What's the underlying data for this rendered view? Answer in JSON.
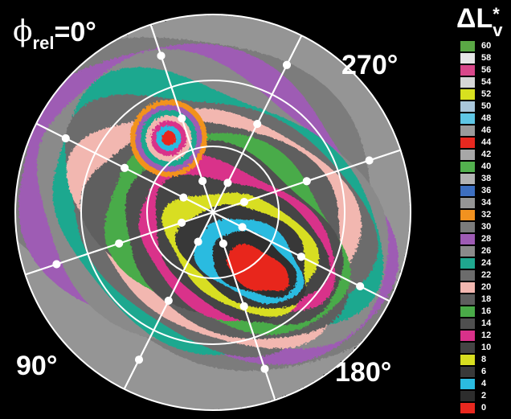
{
  "chart_data": {
    "type": "heatmap",
    "subtype": "polar contour map",
    "angle_labels": {
      "phi_symbol": "ϕ",
      "phi_subscript": "rel",
      "top_left": "=0°",
      "top_right": "270°",
      "bottom_left": "90°",
      "bottom_right": "180°"
    },
    "legend": {
      "title_main": "ΔL",
      "title_super": "*",
      "title_sub": "v",
      "entries": [
        {
          "label": "60",
          "color": "#5aa845"
        },
        {
          "label": "58",
          "color": "#e6e6e6"
        },
        {
          "label": "56",
          "color": "#d9478a"
        },
        {
          "label": "54",
          "color": "#d6d6d6"
        },
        {
          "label": "52",
          "color": "#d8e11f"
        },
        {
          "label": "50",
          "color": "#a9c7db"
        },
        {
          "label": "48",
          "color": "#5ec6e5"
        },
        {
          "label": "46",
          "color": "#9a9a9a"
        },
        {
          "label": "44",
          "color": "#e8281f"
        },
        {
          "label": "42",
          "color": "#a7a7a7"
        },
        {
          "label": "40",
          "color": "#53b14e"
        },
        {
          "label": "38",
          "color": "#b3b3b3"
        },
        {
          "label": "36",
          "color": "#3d6fc0"
        },
        {
          "label": "34",
          "color": "#959595"
        },
        {
          "label": "32",
          "color": "#f2921f"
        },
        {
          "label": "30",
          "color": "#7b7b7b"
        },
        {
          "label": "28",
          "color": "#9e5bb4"
        },
        {
          "label": "26",
          "color": "#8a8a8a"
        },
        {
          "label": "24",
          "color": "#1fa88f"
        },
        {
          "label": "22",
          "color": "#6c6c6c"
        },
        {
          "label": "20",
          "color": "#f2b7b0"
        },
        {
          "label": "18",
          "color": "#5e5e5e"
        },
        {
          "label": "16",
          "color": "#4aab48"
        },
        {
          "label": "14",
          "color": "#4f4f4f"
        },
        {
          "label": "12",
          "color": "#d9318a"
        },
        {
          "label": "10",
          "color": "#444444"
        },
        {
          "label": "8",
          "color": "#d8de20"
        },
        {
          "label": "6",
          "color": "#393939"
        },
        {
          "label": "4",
          "color": "#2bbbe0"
        },
        {
          "label": "2",
          "color": "#2d2d2d"
        },
        {
          "label": "0",
          "color": "#e8281f"
        }
      ]
    },
    "grid": {
      "rings": 3,
      "spokes": 8,
      "spoke_azimuths_deg": [
        0,
        22.5,
        45,
        67.5,
        90,
        112.5,
        135,
        157.5,
        180,
        202.5,
        225,
        247.5,
        270,
        292.5,
        315,
        337.5
      ]
    },
    "notable_regions": {
      "minimum": "0",
      "maximum": "60",
      "red_region_value": "0"
    }
  }
}
